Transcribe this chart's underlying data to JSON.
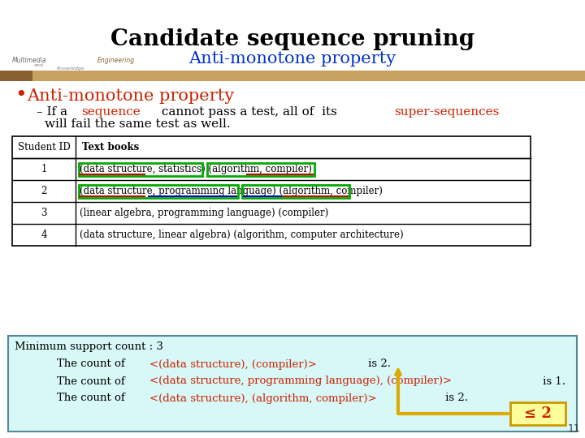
{
  "title": "Candidate sequence pruning",
  "subtitle": "Anti-monotone property",
  "title_color": "#000000",
  "subtitle_color": "#0033cc",
  "bg_color": "#ffffff",
  "bullet_text": "Anti-monotone property",
  "bullet_color": "#cc2200",
  "body_line2": "will fail the same test as well.",
  "table_headers": [
    "Student ID",
    "Text books"
  ],
  "table_rows": [
    [
      "1",
      "(data structure, statistics) (algorithm, compiler)"
    ],
    [
      "2",
      "(data structure, programming language) (algorithm, compiler)"
    ],
    [
      "3",
      "(linear algebra, programming language) (compiler)"
    ],
    [
      "4",
      "(data structure, linear algebra) (algorithm, computer architecture)"
    ]
  ],
  "box_bg": "#d8f8f8",
  "box_border": "#558899",
  "min_support_line": "Minimum support count : 3",
  "count_line_prefix": "The count of ",
  "count_highlights": [
    "<(data structure), (compiler)>",
    "<(data structure, programming language), (compiler)>",
    "<(data structure), (algorithm, compiler)>"
  ],
  "count_suffixes": [
    " is 2.",
    " is 1.",
    " is 2."
  ],
  "leq2_text": "≤ 2",
  "slide_number": "11",
  "bar_color": "#c8a060",
  "bar_left_color": "#8b4513",
  "red_color": "#cc2200",
  "green_color": "#00aa00",
  "arrow_color": "#ddaa00",
  "leq_box_color": "#ffff99",
  "leq_box_border": "#cc9900",
  "leq_text_color": "#cc2200"
}
